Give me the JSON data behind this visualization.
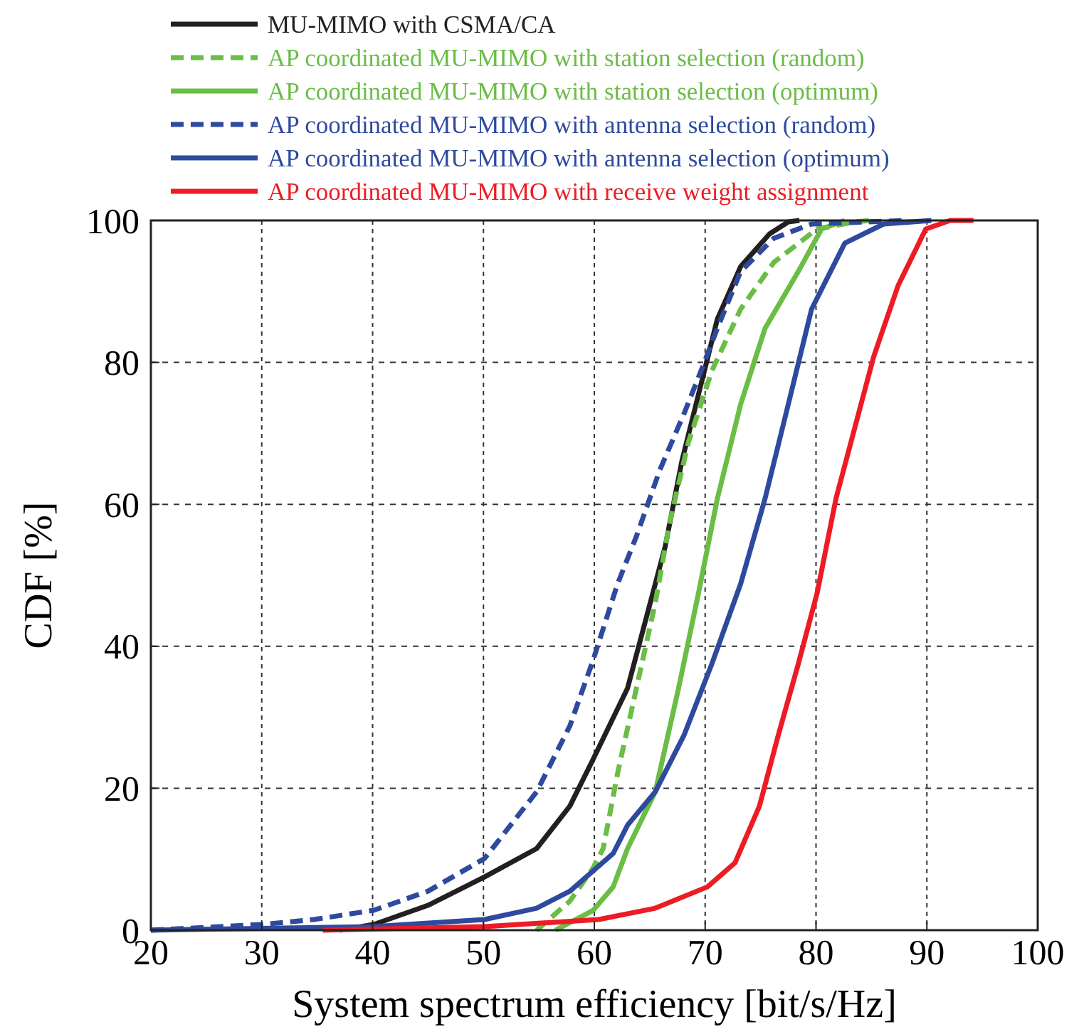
{
  "chart_data": {
    "type": "line",
    "xlabel": "System spectrum efficiency [bit/s/Hz]",
    "ylabel": "CDF [%]",
    "xlim": [
      20,
      100
    ],
    "xticks": [
      20,
      30,
      40,
      50,
      60,
      70,
      80,
      90,
      100
    ],
    "ylim": [
      0,
      100
    ],
    "yticks": [
      0,
      20,
      40,
      60,
      80,
      100
    ],
    "grid": true,
    "legend": "top",
    "marker": "none",
    "series": [
      {
        "name": "MU-MIMO with CSMA/CA",
        "color": "#231f20",
        "line_style": "solid",
        "x": [
          37,
          40.1,
          45,
          50.1,
          54.8,
          57.8,
          59.9,
          63,
          64.6,
          66.4,
          67.9,
          69.4,
          71.1,
          73.2,
          75.8,
          77.5,
          78.5
        ],
        "values": [
          0,
          0.8,
          3.5,
          7.5,
          11.5,
          17.5,
          24.1,
          34.1,
          43.5,
          54.1,
          66.1,
          75.5,
          86.1,
          93.5,
          98.1,
          99.8,
          100
        ]
      },
      {
        "name": "AP coordinated MU-MIMO with station selection (random)",
        "color": "#6abd45",
        "line_style": "dashed",
        "x": [
          54.8,
          57.8,
          59.9,
          60.8,
          62.1,
          63.8,
          65.5,
          66.8,
          68.5,
          70.6,
          73.2,
          76.2,
          80.1,
          83.5,
          85
        ],
        "values": [
          0,
          4.1,
          8.8,
          11.5,
          22.1,
          34.1,
          46.1,
          57.5,
          68.8,
          78.8,
          87.5,
          94.1,
          98.8,
          99.8,
          100
        ]
      },
      {
        "name": "AP coordinated MU-MIMO with station selection (optimum)",
        "color": "#6abd45",
        "line_style": "solid",
        "x": [
          56.5,
          59.9,
          61.7,
          63,
          65.5,
          67.6,
          69.4,
          71.1,
          73.2,
          75.4,
          78.4,
          80.5,
          82.6
        ],
        "values": [
          0,
          2.8,
          6.1,
          11.5,
          19.5,
          34.1,
          47.5,
          60.8,
          74.1,
          84.8,
          92.8,
          98.8,
          100
        ]
      },
      {
        "name": "AP coordinated MU-MIMO with antenna selection (random)",
        "color": "#2e4a9e",
        "line_style": "dashed",
        "x": [
          20,
          30,
          34.7,
          40.1,
          45,
          50.1,
          54.8,
          57.8,
          59.9,
          62.1,
          63.8,
          65.9,
          68.1,
          69.8,
          71.1,
          73.2,
          76.2,
          79.6,
          88.2
        ],
        "values": [
          0,
          0.8,
          1.5,
          2.8,
          5.5,
          10.1,
          19.5,
          28.8,
          38.1,
          48.8,
          55.5,
          64.8,
          72.8,
          79.5,
          84.8,
          92.8,
          97.5,
          99.5,
          100
        ]
      },
      {
        "name": "AP coordinated MU-MIMO with antenna selection (optimum)",
        "color": "#2e4a9e",
        "line_style": "solid",
        "x": [
          20,
          40,
          50.1,
          54.8,
          57.8,
          61.7,
          63,
          65.5,
          68.1,
          70.6,
          73.2,
          75.4,
          77.5,
          79.6,
          82.6,
          86.1,
          90.4
        ],
        "values": [
          0,
          0.5,
          1.5,
          3.1,
          5.5,
          10.8,
          14.8,
          19.5,
          27.5,
          37.5,
          48.8,
          60.8,
          74.1,
          87.5,
          96.8,
          99.5,
          100
        ]
      },
      {
        "name": "AP coordinated MU-MIMO with receive weight assignment",
        "color": "#ed1c24",
        "line_style": "solid",
        "x": [
          35.5,
          50.1,
          60.4,
          65.5,
          70.2,
          72.7,
          74.9,
          76.6,
          78.4,
          80.1,
          81.8,
          83.5,
          85.2,
          87.4,
          89.9,
          92.1,
          94.2
        ],
        "values": [
          0,
          0.5,
          1.5,
          3.1,
          6.1,
          9.5,
          17.5,
          27.5,
          37.5,
          47.5,
          60.8,
          70.8,
          80.8,
          90.8,
          98.8,
          100,
          100
        ]
      }
    ]
  }
}
